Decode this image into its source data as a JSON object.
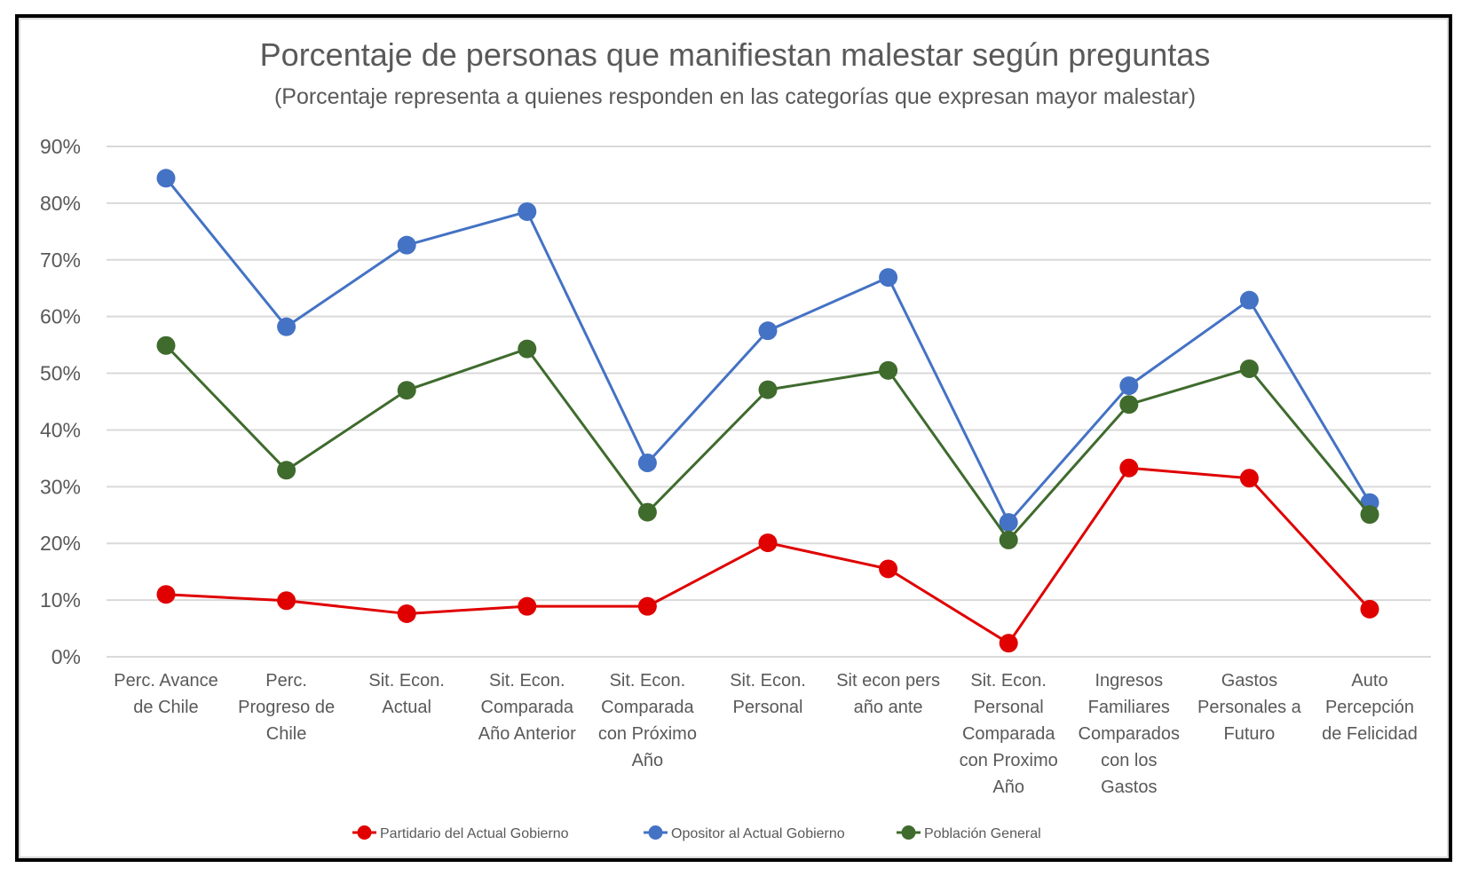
{
  "chart_data": {
    "type": "line",
    "title": "Porcentaje de personas que manifiestan malestar según preguntas",
    "subtitle": "(Porcentaje representa a quienes responden en las categorías que expresan mayor malestar)",
    "xlabel": "",
    "ylabel": "",
    "ylim": [
      0,
      90
    ],
    "yticks": [
      0,
      10,
      20,
      30,
      40,
      50,
      60,
      70,
      80,
      90
    ],
    "ytick_labels": [
      "0%",
      "10%",
      "20%",
      "30%",
      "40%",
      "50%",
      "60%",
      "70%",
      "80%",
      "90%"
    ],
    "grid": true,
    "legend_position": "bottom",
    "categories": [
      [
        "Perc. Avance",
        "de Chile"
      ],
      [
        "Perc.",
        "Progreso de",
        "Chile"
      ],
      [
        "Sit. Econ.",
        "Actual"
      ],
      [
        "Sit. Econ.",
        "Comparada",
        "Año Anterior"
      ],
      [
        "Sit. Econ.",
        "Comparada",
        "con Próximo",
        "Año"
      ],
      [
        "Sit. Econ.",
        "Personal"
      ],
      [
        "Sit econ pers",
        "año ante"
      ],
      [
        "Sit. Econ.",
        "Personal",
        "Comparada",
        "con Proximo",
        "Año"
      ],
      [
        "Ingresos",
        "Familiares",
        "Comparados",
        "con los",
        "Gastos"
      ],
      [
        "Gastos",
        "Personales a",
        "Futuro"
      ],
      [
        "Auto",
        "Percepción",
        "de Felicidad"
      ]
    ],
    "series": [
      {
        "name": "Partidario del Actual Gobierno",
        "color": "#e00000",
        "values": [
          11.0,
          9.9,
          7.6,
          8.9,
          8.9,
          20.1,
          15.5,
          2.4,
          33.3,
          31.5,
          8.4
        ]
      },
      {
        "name": "Opositor al Actual Gobierno",
        "color": "#4472c4",
        "values": [
          84.4,
          58.2,
          72.6,
          78.5,
          34.2,
          57.5,
          66.9,
          23.7,
          47.8,
          62.9,
          27.2
        ]
      },
      {
        "name": "Población General",
        "color": "#3f6b2d",
        "values": [
          54.9,
          32.9,
          47.0,
          54.3,
          25.5,
          47.1,
          50.5,
          20.6,
          44.5,
          50.8,
          25.1
        ]
      }
    ]
  }
}
